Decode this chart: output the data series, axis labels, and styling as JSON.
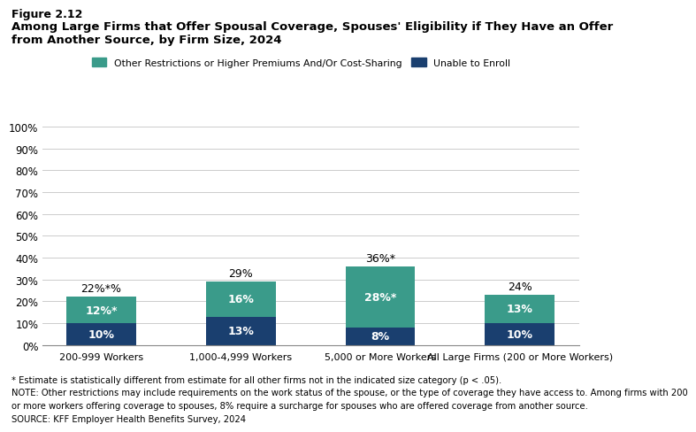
{
  "categories": [
    "200-999 Workers",
    "1,000-4,999 Workers",
    "5,000 or More Workers",
    "All Large Firms (200 or More Workers)"
  ],
  "unable_to_enroll": [
    10,
    13,
    8,
    10
  ],
  "other_restrictions": [
    12,
    16,
    28,
    13
  ],
  "totals_labels": [
    "22%*%",
    "29%",
    "36%*",
    "24%"
  ],
  "unable_labels": [
    "10%",
    "13%",
    "8%",
    "10%"
  ],
  "other_labels": [
    "12%*",
    "16%",
    "28%*",
    "13%"
  ],
  "color_unable": "#1a3f6f",
  "color_other": "#3a9b8a",
  "legend_labels": [
    "Other Restrictions or Higher Premiums And/Or Cost-Sharing",
    "Unable to Enroll"
  ],
  "ylim": [
    0,
    100
  ],
  "yticks": [
    0,
    10,
    20,
    30,
    40,
    50,
    60,
    70,
    80,
    90,
    100
  ],
  "figure_label": "Figure 2.12",
  "title_line1": "Among Large Firms that Offer Spousal Coverage, Spouses' Eligibility if They Have an Offer",
  "title_line2": "from Another Source, by Firm Size, 2024",
  "footnote1": "* Estimate is statistically different from estimate for all other firms not in the indicated size category (p < .05).",
  "footnote2": "NOTE: Other restrictions may include requirements on the work status of the spouse, or the type of coverage they have access to. Among firms with 200",
  "footnote3": "or more workers offering coverage to spouses, 8% require a surcharge for spouses who are offered coverage from another source.",
  "footnote4": "SOURCE: KFF Employer Health Benefits Survey, 2024",
  "bar_width": 0.5
}
